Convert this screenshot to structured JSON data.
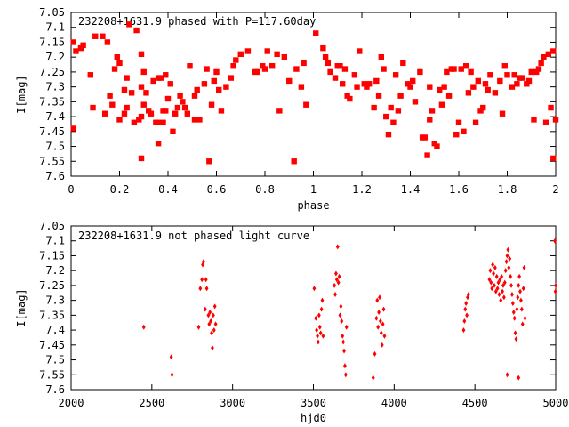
{
  "chart_data": [
    {
      "type": "scatter",
      "title": "232208+1631.9 phased with P=117.60day",
      "xlabel": "phase",
      "ylabel": "I[mag]",
      "xlim": [
        0,
        2
      ],
      "ylim": [
        7.6,
        7.05
      ],
      "y_inverted": true,
      "grid": false,
      "marker_color": "#ff0000",
      "x_ticks": [
        "0",
        "0.2",
        "0.4",
        "0.6",
        "0.8",
        "1",
        "1.2",
        "1.4",
        "1.6",
        "1.8",
        "2"
      ],
      "y_ticks": [
        "7.05",
        "7.1",
        "7.15",
        "7.2",
        "7.25",
        "7.3",
        "7.35",
        "7.4",
        "7.45",
        "7.5",
        "7.55",
        "7.6"
      ],
      "points": [
        [
          0.01,
          7.15
        ],
        [
          0.01,
          7.44
        ],
        [
          0.02,
          7.18
        ],
        [
          0.04,
          7.17
        ],
        [
          0.05,
          7.16
        ],
        [
          0.08,
          7.26
        ],
        [
          0.09,
          7.37
        ],
        [
          0.1,
          7.13
        ],
        [
          0.13,
          7.13
        ],
        [
          0.14,
          7.39
        ],
        [
          0.15,
          7.15
        ],
        [
          0.16,
          7.33
        ],
        [
          0.17,
          7.36
        ],
        [
          0.18,
          7.24
        ],
        [
          0.19,
          7.2
        ],
        [
          0.2,
          7.22
        ],
        [
          0.2,
          7.41
        ],
        [
          0.22,
          7.31
        ],
        [
          0.22,
          7.39
        ],
        [
          0.23,
          7.27
        ],
        [
          0.23,
          7.37
        ],
        [
          0.24,
          7.09
        ],
        [
          0.25,
          7.32
        ],
        [
          0.26,
          7.42
        ],
        [
          0.27,
          7.11
        ],
        [
          0.28,
          7.41
        ],
        [
          0.29,
          7.4
        ],
        [
          0.29,
          7.3
        ],
        [
          0.29,
          7.19
        ],
        [
          0.29,
          7.54
        ],
        [
          0.3,
          7.36
        ],
        [
          0.3,
          7.25
        ],
        [
          0.31,
          7.32
        ],
        [
          0.32,
          7.38
        ],
        [
          0.33,
          7.39
        ],
        [
          0.34,
          7.28
        ],
        [
          0.35,
          7.42
        ],
        [
          0.36,
          7.42
        ],
        [
          0.36,
          7.49
        ],
        [
          0.36,
          7.27
        ],
        [
          0.37,
          7.27
        ],
        [
          0.38,
          7.38
        ],
        [
          0.38,
          7.42
        ],
        [
          0.39,
          7.38
        ],
        [
          0.39,
          7.26
        ],
        [
          0.4,
          7.34
        ],
        [
          0.41,
          7.29
        ],
        [
          0.42,
          7.45
        ],
        [
          0.43,
          7.39
        ],
        [
          0.44,
          7.37
        ],
        [
          0.45,
          7.33
        ],
        [
          0.46,
          7.35
        ],
        [
          0.47,
          7.37
        ],
        [
          0.48,
          7.39
        ],
        [
          0.49,
          7.23
        ],
        [
          0.51,
          7.33
        ],
        [
          0.51,
          7.41
        ],
        [
          0.52,
          7.31
        ],
        [
          0.53,
          7.41
        ],
        [
          0.55,
          7.29
        ],
        [
          0.56,
          7.24
        ],
        [
          0.57,
          7.55
        ],
        [
          0.58,
          7.36
        ],
        [
          0.59,
          7.28
        ],
        [
          0.6,
          7.25
        ],
        [
          0.61,
          7.31
        ],
        [
          0.62,
          7.38
        ],
        [
          0.64,
          7.3
        ],
        [
          0.66,
          7.27
        ],
        [
          0.67,
          7.23
        ],
        [
          0.68,
          7.21
        ],
        [
          0.7,
          7.19
        ],
        [
          0.73,
          7.18
        ],
        [
          0.76,
          7.25
        ],
        [
          0.77,
          7.25
        ],
        [
          0.79,
          7.23
        ],
        [
          0.8,
          7.24
        ],
        [
          0.81,
          7.18
        ],
        [
          0.83,
          7.23
        ],
        [
          0.85,
          7.19
        ],
        [
          0.86,
          7.38
        ],
        [
          0.88,
          7.2
        ],
        [
          0.9,
          7.28
        ],
        [
          0.92,
          7.55
        ],
        [
          0.93,
          7.24
        ],
        [
          0.95,
          7.3
        ],
        [
          0.96,
          7.22
        ],
        [
          0.97,
          7.36
        ],
        [
          1.01,
          7.12
        ],
        [
          1.04,
          7.17
        ],
        [
          1.05,
          7.2
        ],
        [
          1.06,
          7.22
        ],
        [
          1.07,
          7.25
        ],
        [
          1.09,
          7.27
        ],
        [
          1.1,
          7.23
        ],
        [
          1.11,
          7.23
        ],
        [
          1.12,
          7.29
        ],
        [
          1.13,
          7.24
        ],
        [
          1.14,
          7.33
        ],
        [
          1.15,
          7.34
        ],
        [
          1.17,
          7.26
        ],
        [
          1.18,
          7.3
        ],
        [
          1.19,
          7.18
        ],
        [
          1.21,
          7.29
        ],
        [
          1.22,
          7.3
        ],
        [
          1.23,
          7.29
        ],
        [
          1.25,
          7.37
        ],
        [
          1.26,
          7.28
        ],
        [
          1.27,
          7.33
        ],
        [
          1.28,
          7.2
        ],
        [
          1.29,
          7.24
        ],
        [
          1.3,
          7.4
        ],
        [
          1.31,
          7.46
        ],
        [
          1.32,
          7.37
        ],
        [
          1.33,
          7.42
        ],
        [
          1.34,
          7.26
        ],
        [
          1.35,
          7.38
        ],
        [
          1.36,
          7.33
        ],
        [
          1.37,
          7.22
        ],
        [
          1.39,
          7.29
        ],
        [
          1.4,
          7.3
        ],
        [
          1.41,
          7.28
        ],
        [
          1.42,
          7.35
        ],
        [
          1.44,
          7.25
        ],
        [
          1.45,
          7.47
        ],
        [
          1.46,
          7.47
        ],
        [
          1.47,
          7.53
        ],
        [
          1.48,
          7.41
        ],
        [
          1.48,
          7.3
        ],
        [
          1.49,
          7.38
        ],
        [
          1.5,
          7.49
        ],
        [
          1.51,
          7.5
        ],
        [
          1.52,
          7.31
        ],
        [
          1.53,
          7.36
        ],
        [
          1.54,
          7.3
        ],
        [
          1.55,
          7.25
        ],
        [
          1.56,
          7.33
        ],
        [
          1.57,
          7.24
        ],
        [
          1.58,
          7.24
        ],
        [
          1.59,
          7.46
        ],
        [
          1.6,
          7.42
        ],
        [
          1.61,
          7.24
        ],
        [
          1.62,
          7.45
        ],
        [
          1.63,
          7.23
        ],
        [
          1.64,
          7.32
        ],
        [
          1.65,
          7.25
        ],
        [
          1.66,
          7.3
        ],
        [
          1.67,
          7.42
        ],
        [
          1.68,
          7.28
        ],
        [
          1.69,
          7.38
        ],
        [
          1.7,
          7.37
        ],
        [
          1.71,
          7.29
        ],
        [
          1.72,
          7.31
        ],
        [
          1.73,
          7.26
        ],
        [
          1.75,
          7.32
        ],
        [
          1.77,
          7.28
        ],
        [
          1.78,
          7.39
        ],
        [
          1.79,
          7.23
        ],
        [
          1.8,
          7.26
        ],
        [
          1.82,
          7.3
        ],
        [
          1.83,
          7.26
        ],
        [
          1.84,
          7.29
        ],
        [
          1.85,
          7.27
        ],
        [
          1.86,
          7.27
        ],
        [
          1.88,
          7.29
        ],
        [
          1.89,
          7.28
        ],
        [
          1.9,
          7.25
        ],
        [
          1.91,
          7.41
        ],
        [
          1.92,
          7.25
        ],
        [
          1.93,
          7.24
        ],
        [
          1.94,
          7.22
        ],
        [
          1.95,
          7.2
        ],
        [
          1.96,
          7.42
        ],
        [
          1.97,
          7.19
        ],
        [
          1.98,
          7.37
        ],
        [
          1.99,
          7.18
        ],
        [
          1.99,
          7.54
        ],
        [
          2.0,
          7.41
        ]
      ]
    },
    {
      "type": "scatter",
      "title": "232208+1631.9 not phased light curve",
      "xlabel": "hjd0",
      "ylabel": "I[mag]",
      "xlim": [
        2000,
        5000
      ],
      "ylim": [
        7.6,
        7.05
      ],
      "y_inverted": true,
      "grid": false,
      "marker_color": "#ff0000",
      "x_ticks": [
        "2000",
        "2500",
        "3000",
        "3500",
        "4000",
        "4500",
        "5000"
      ],
      "y_ticks": [
        "7.05",
        "7.1",
        "7.15",
        "7.2",
        "7.25",
        "7.3",
        "7.35",
        "7.4",
        "7.45",
        "7.5",
        "7.55",
        "7.6"
      ],
      "points": [
        [
          2450,
          7.39
        ],
        [
          2620,
          7.49
        ],
        [
          2625,
          7.55
        ],
        [
          2790,
          7.39
        ],
        [
          2800,
          7.26
        ],
        [
          2810,
          7.23
        ],
        [
          2815,
          7.18
        ],
        [
          2820,
          7.17
        ],
        [
          2830,
          7.33
        ],
        [
          2835,
          7.23
        ],
        [
          2840,
          7.26
        ],
        [
          2850,
          7.35
        ],
        [
          2855,
          7.38
        ],
        [
          2860,
          7.34
        ],
        [
          2865,
          7.37
        ],
        [
          2870,
          7.41
        ],
        [
          2875,
          7.46
        ],
        [
          2880,
          7.35
        ],
        [
          2885,
          7.4
        ],
        [
          2890,
          7.32
        ],
        [
          2895,
          7.38
        ],
        [
          3505,
          7.26
        ],
        [
          3515,
          7.36
        ],
        [
          3520,
          7.4
        ],
        [
          3525,
          7.42
        ],
        [
          3530,
          7.44
        ],
        [
          3535,
          7.35
        ],
        [
          3540,
          7.39
        ],
        [
          3545,
          7.41
        ],
        [
          3550,
          7.33
        ],
        [
          3555,
          7.3
        ],
        [
          3560,
          7.42
        ],
        [
          3630,
          7.25
        ],
        [
          3635,
          7.28
        ],
        [
          3640,
          7.21
        ],
        [
          3645,
          7.23
        ],
        [
          3650,
          7.12
        ],
        [
          3655,
          7.24
        ],
        [
          3660,
          7.22
        ],
        [
          3665,
          7.35
        ],
        [
          3670,
          7.32
        ],
        [
          3675,
          7.37
        ],
        [
          3680,
          7.42
        ],
        [
          3685,
          7.44
        ],
        [
          3690,
          7.47
        ],
        [
          3695,
          7.52
        ],
        [
          3700,
          7.55
        ],
        [
          3705,
          7.39
        ],
        [
          3870,
          7.56
        ],
        [
          3880,
          7.48
        ],
        [
          3890,
          7.36
        ],
        [
          3895,
          7.3
        ],
        [
          3900,
          7.39
        ],
        [
          3905,
          7.34
        ],
        [
          3910,
          7.29
        ],
        [
          3915,
          7.37
        ],
        [
          3920,
          7.41
        ],
        [
          3925,
          7.45
        ],
        [
          3930,
          7.38
        ],
        [
          3935,
          7.33
        ],
        [
          3940,
          7.42
        ],
        [
          4430,
          7.4
        ],
        [
          4435,
          7.37
        ],
        [
          4440,
          7.33
        ],
        [
          4445,
          7.31
        ],
        [
          4450,
          7.35
        ],
        [
          4455,
          7.29
        ],
        [
          4460,
          7.28
        ],
        [
          4590,
          7.23
        ],
        [
          4595,
          7.2
        ],
        [
          4600,
          7.24
        ],
        [
          4605,
          7.26
        ],
        [
          4610,
          7.18
        ],
        [
          4615,
          7.21
        ],
        [
          4620,
          7.25
        ],
        [
          4625,
          7.19
        ],
        [
          4630,
          7.27
        ],
        [
          4635,
          7.22
        ],
        [
          4640,
          7.26
        ],
        [
          4645,
          7.24
        ],
        [
          4650,
          7.28
        ],
        [
          4655,
          7.23
        ],
        [
          4660,
          7.3
        ],
        [
          4665,
          7.22
        ],
        [
          4670,
          7.27
        ],
        [
          4675,
          7.25
        ],
        [
          4680,
          7.29
        ],
        [
          4685,
          7.24
        ],
        [
          4690,
          7.2
        ],
        [
          4695,
          7.17
        ],
        [
          4700,
          7.15
        ],
        [
          4705,
          7.13
        ],
        [
          4710,
          7.19
        ],
        [
          4715,
          7.16
        ],
        [
          4720,
          7.22
        ],
        [
          4725,
          7.25
        ],
        [
          4730,
          7.28
        ],
        [
          4735,
          7.31
        ],
        [
          4740,
          7.34
        ],
        [
          4745,
          7.36
        ],
        [
          4750,
          7.41
        ],
        [
          4755,
          7.43
        ],
        [
          4760,
          7.33
        ],
        [
          4765,
          7.29
        ],
        [
          4770,
          7.25
        ],
        [
          4775,
          7.22
        ],
        [
          4780,
          7.27
        ],
        [
          4785,
          7.3
        ],
        [
          4790,
          7.33
        ],
        [
          4795,
          7.38
        ],
        [
          4800,
          7.26
        ],
        [
          4805,
          7.19
        ],
        [
          4810,
          7.36
        ],
        [
          4700,
          7.55
        ],
        [
          4770,
          7.56
        ],
        [
          4995,
          7.1
        ],
        [
          4998,
          7.27
        ],
        [
          5000,
          7.25
        ]
      ]
    }
  ]
}
